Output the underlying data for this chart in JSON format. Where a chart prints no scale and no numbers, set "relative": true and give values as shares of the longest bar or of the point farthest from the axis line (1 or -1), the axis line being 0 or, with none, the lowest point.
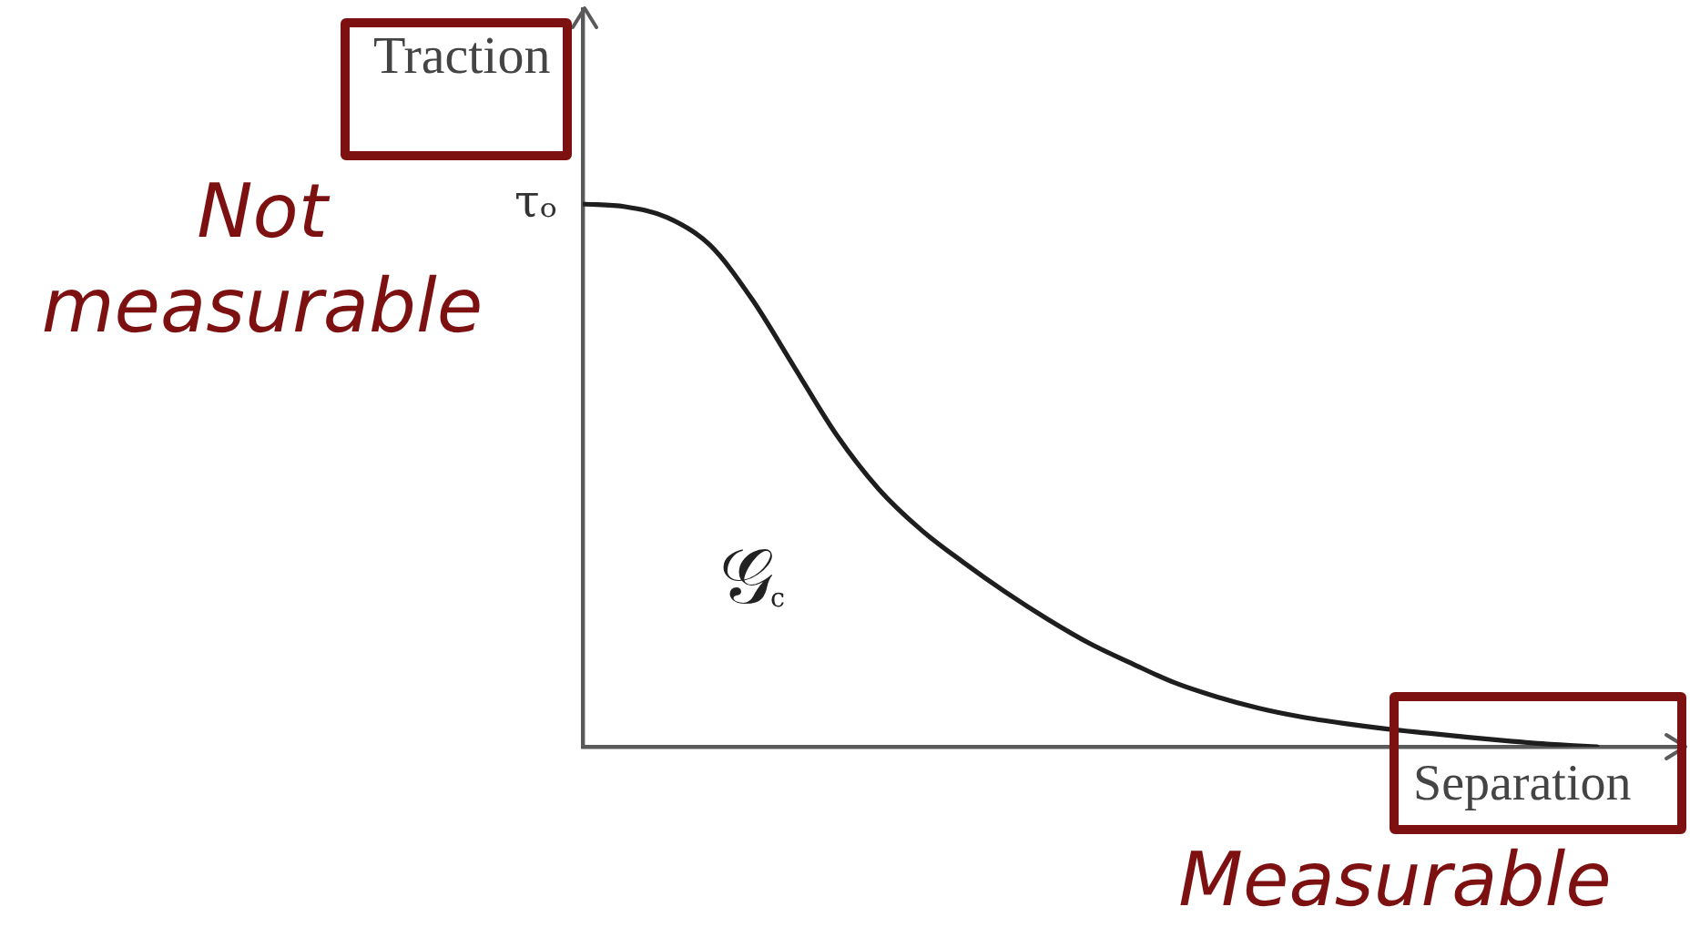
{
  "chart_data": {
    "type": "line",
    "xlabel": "Separation",
    "ylabel": "Traction",
    "categories": [
      null,
      null,
      null,
      null,
      null,
      null,
      null,
      null,
      null,
      null,
      null,
      null,
      null,
      null,
      null,
      null,
      null,
      null,
      null,
      null,
      null,
      null,
      null,
      null,
      null
    ],
    "series": [
      {
        "color": "#1e1e1e",
        "values": [
          1,
          0.995,
          0.975,
          0.925,
          0.825,
          0.7,
          0.575,
          0.475,
          0.4,
          0.34,
          0.285,
          0.235,
          0.19,
          0.153,
          0.118,
          0.092,
          0.071,
          0.055,
          0.043,
          0.033,
          0.025,
          0.017,
          0.01,
          0.004,
          0
        ]
      }
    ],
    "relative": true,
    "grid": false,
    "legend": false,
    "annotations": [
      "Not measurable",
      "Measurable",
      "τₒ",
      "𝒢$_{c}$"
    ]
  }
}
